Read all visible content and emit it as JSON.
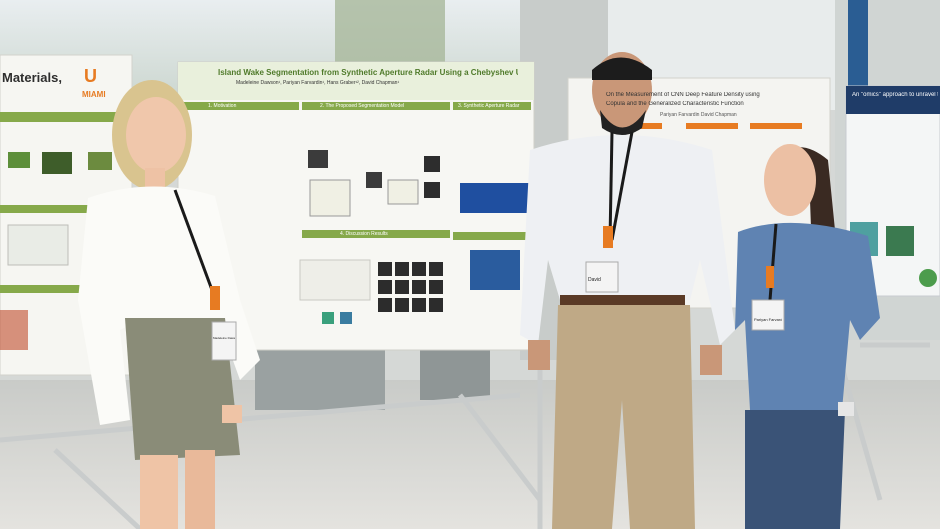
{
  "posters": {
    "left": {
      "title_fragment": "Materials,",
      "logo_text": "MIAMI"
    },
    "center": {
      "title": "Island Wake Segmentation from Synthetic Aperture Radar Using a Chebyshev U-Net",
      "authors": "Madeleine Dawson¹, Pariyan Farvardin¹, Hans Graber¹², David Chapman¹",
      "section_1": "1. Motivation",
      "section_2": "2. The Proposed Segmentation Model",
      "section_3": "3. Synthetic Aperture Radar",
      "section_4": "4. Discussion Results"
    },
    "right": {
      "title": "On the Measurement of CNN Deep Feature Density using",
      "subtitle": "Copula and the Generalized Characteristic Function",
      "authors": "Pariyan Farvardin   David Chapman"
    },
    "far_right": {
      "title": "An \"omics\" approach to unravel the"
    }
  },
  "badges": {
    "left_person": "Madeleine Dawson",
    "middle_person": "David",
    "right_person": "Pariyan Farvardin"
  },
  "colors": {
    "poster_green": "#86a94a",
    "poster_orange": "#e77b22",
    "um_green": "#005030",
    "lanyard": "#1a1a1a"
  }
}
